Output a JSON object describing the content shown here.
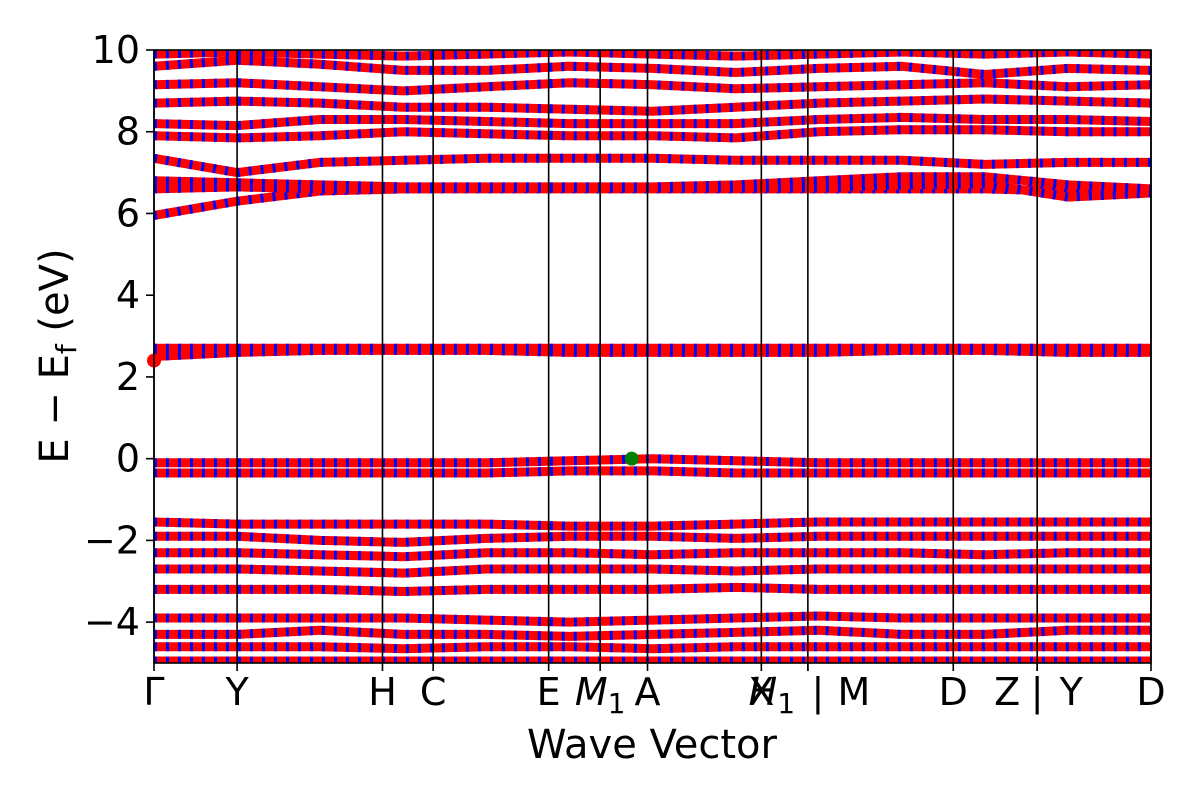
{
  "chart_data": {
    "type": "line",
    "title": "",
    "xlabel": "Wave Vector",
    "ylabel": "E − E",
    "ylabel_subscript": "f",
    "ylabel_unit": " (eV)",
    "ylim": [
      -5,
      10
    ],
    "yticks": [
      -4,
      -2,
      0,
      2,
      4,
      6,
      8,
      10
    ],
    "ytick_labels": [
      "−4",
      "−2",
      "0",
      "2",
      "4",
      "6",
      "8",
      "10"
    ],
    "xlim": [
      0,
      12
    ],
    "kpoints": [
      {
        "label": "Γ",
        "pos": 0.0
      },
      {
        "label": "Y",
        "pos": 1.0
      },
      {
        "label": "H",
        "pos": 2.75
      },
      {
        "label": "C",
        "pos": 3.36
      },
      {
        "label": "E",
        "pos": 4.75
      },
      {
        "label": "M",
        "sub": "1",
        "pos": 5.37
      },
      {
        "label": "A",
        "pos": 5.94
      },
      {
        "label": "X",
        "pos": 7.31
      },
      {
        "label": "H",
        "sub": "1",
        "pos": 7.87,
        "prefix": "",
        "suffix": " |"
      },
      {
        "label": "M",
        "pos": 7.87
      },
      {
        "label": "D",
        "pos": 9.62
      },
      {
        "label": "Z",
        "pos": 10.63,
        "suffix": " |"
      },
      {
        "label": "Y",
        "pos": 10.63
      },
      {
        "label": "D",
        "pos": 12.0
      }
    ],
    "spin_up_color": "#ff0000",
    "spin_down_color": "#0000ff",
    "vbm_marker": {
      "x": 5.75,
      "y": 0.0,
      "color": "#008000"
    },
    "cbm_marker": {
      "x": 0.0,
      "y": 2.4,
      "color": "#ff0000"
    },
    "bands": [
      {
        "name": "",
        "values": [
          5.95,
          6.3,
          6.55,
          6.6,
          6.6,
          6.6,
          6.6,
          6.6,
          6.6,
          6.6,
          6.6,
          6.55,
          6.6
        ]
      },
      {
        "name": "",
        "values": [
          6.6,
          6.65,
          6.6,
          6.6,
          6.62,
          6.62,
          6.62,
          6.62,
          6.62,
          6.7,
          6.72,
          6.4,
          6.5
        ]
      },
      {
        "name": "",
        "values": [
          6.8,
          6.75,
          6.7,
          6.65,
          6.65,
          6.65,
          6.65,
          6.7,
          6.8,
          6.9,
          6.9,
          6.7,
          6.6
        ]
      },
      {
        "name": "",
        "values": [
          7.35,
          7.0,
          7.25,
          7.3,
          7.35,
          7.35,
          7.35,
          7.3,
          7.3,
          7.3,
          7.2,
          7.25,
          7.25
        ]
      },
      {
        "name": "",
        "values": [
          7.9,
          7.85,
          7.9,
          8.0,
          7.95,
          7.9,
          7.9,
          7.85,
          8.0,
          8.05,
          8.05,
          8.0,
          8.0
        ]
      },
      {
        "name": "",
        "values": [
          8.2,
          8.15,
          8.3,
          8.3,
          8.25,
          8.2,
          8.2,
          8.2,
          8.3,
          8.35,
          8.3,
          8.3,
          8.25
        ]
      },
      {
        "name": "",
        "values": [
          8.7,
          8.75,
          8.7,
          8.6,
          8.6,
          8.55,
          8.5,
          8.6,
          8.7,
          8.75,
          8.8,
          8.75,
          8.7
        ]
      },
      {
        "name": "",
        "values": [
          9.15,
          9.2,
          9.1,
          9.0,
          9.1,
          9.2,
          9.15,
          9.05,
          9.1,
          9.15,
          9.2,
          9.1,
          9.15
        ]
      },
      {
        "name": "",
        "values": [
          9.6,
          9.75,
          9.65,
          9.5,
          9.5,
          9.6,
          9.55,
          9.45,
          9.55,
          9.6,
          9.4,
          9.55,
          9.5
        ]
      },
      {
        "name": "",
        "values": [
          9.9,
          9.95,
          9.9,
          9.85,
          9.9,
          9.95,
          9.9,
          9.85,
          9.9,
          9.95,
          9.9,
          9.95,
          9.9
        ]
      },
      {
        "name": "",
        "values": [
          2.5,
          2.6,
          2.65,
          2.65,
          2.65,
          2.6,
          2.6,
          2.6,
          2.6,
          2.65,
          2.65,
          2.6,
          2.6
        ]
      },
      {
        "name": "",
        "values": [
          2.7,
          2.7,
          2.7,
          2.7,
          2.7,
          2.7,
          2.7,
          2.7,
          2.7,
          2.7,
          2.7,
          2.7,
          2.7
        ]
      },
      {
        "name": "",
        "values": [
          -0.1,
          -0.1,
          -0.1,
          -0.1,
          -0.1,
          -0.05,
          0.0,
          -0.05,
          -0.1,
          -0.1,
          -0.1,
          -0.1,
          -0.1
        ]
      },
      {
        "name": "",
        "values": [
          -0.35,
          -0.35,
          -0.35,
          -0.35,
          -0.35,
          -0.3,
          -0.3,
          -0.35,
          -0.35,
          -0.35,
          -0.35,
          -0.35,
          -0.35
        ]
      },
      {
        "name": "",
        "values": [
          -1.55,
          -1.6,
          -1.6,
          -1.6,
          -1.6,
          -1.65,
          -1.65,
          -1.6,
          -1.55,
          -1.55,
          -1.55,
          -1.55,
          -1.55
        ]
      },
      {
        "name": "",
        "values": [
          -1.9,
          -1.9,
          -2.0,
          -2.05,
          -1.95,
          -1.9,
          -1.9,
          -1.95,
          -1.9,
          -1.9,
          -1.9,
          -1.9,
          -1.9
        ]
      },
      {
        "name": "",
        "values": [
          -2.3,
          -2.3,
          -2.35,
          -2.4,
          -2.3,
          -2.3,
          -2.35,
          -2.3,
          -2.3,
          -2.3,
          -2.35,
          -2.3,
          -2.3
        ]
      },
      {
        "name": "",
        "values": [
          -2.7,
          -2.7,
          -2.75,
          -2.8,
          -2.7,
          -2.7,
          -2.7,
          -2.75,
          -2.7,
          -2.7,
          -2.7,
          -2.7,
          -2.7
        ]
      },
      {
        "name": "",
        "values": [
          -3.2,
          -3.2,
          -3.2,
          -3.25,
          -3.2,
          -3.2,
          -3.2,
          -3.15,
          -3.2,
          -3.2,
          -3.2,
          -3.2,
          -3.2
        ]
      },
      {
        "name": "",
        "values": [
          -3.9,
          -3.9,
          -3.9,
          -3.9,
          -3.95,
          -4.0,
          -3.95,
          -3.9,
          -3.85,
          -3.9,
          -3.9,
          -3.9,
          -3.9
        ]
      },
      {
        "name": "",
        "values": [
          -4.3,
          -4.3,
          -4.2,
          -4.3,
          -4.3,
          -4.35,
          -4.3,
          -4.25,
          -4.2,
          -4.3,
          -4.3,
          -4.2,
          -4.2
        ]
      },
      {
        "name": "",
        "values": [
          -4.6,
          -4.6,
          -4.6,
          -4.65,
          -4.6,
          -4.6,
          -4.65,
          -4.6,
          -4.6,
          -4.6,
          -4.6,
          -4.6,
          -4.6
        ]
      },
      {
        "name": "",
        "values": [
          -4.95,
          -4.95,
          -4.95,
          -4.95,
          -4.95,
          -4.95,
          -4.95,
          -4.95,
          -4.95,
          -4.95,
          -4.95,
          -4.95,
          -4.95
        ]
      }
    ]
  }
}
